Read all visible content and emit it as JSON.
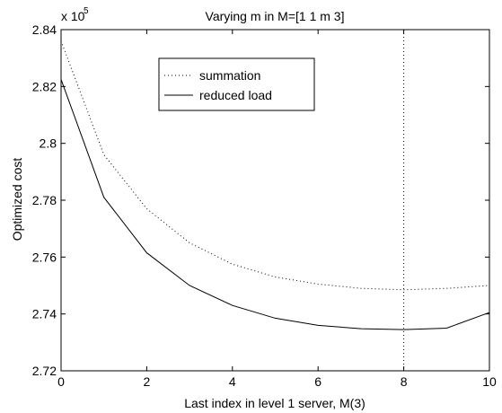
{
  "chart_data": {
    "type": "line",
    "title": "Varying m in M=[1 1 m 3]",
    "xlabel": "Last index in level 1 server, M(3)",
    "ylabel": "Optimized cost",
    "y_multiplier": "x 10",
    "y_multiplier_exponent": "5",
    "xlim": [
      0,
      10
    ],
    "ylim": [
      2.72,
      2.84
    ],
    "x_ticks": [
      "0",
      "2",
      "4",
      "6",
      "8",
      "10"
    ],
    "y_ticks": [
      "2.72",
      "2.74",
      "2.76",
      "2.78",
      "2.8",
      "2.82",
      "2.84"
    ],
    "grid": false,
    "legend_position": "top-center",
    "x": [
      0,
      1,
      2,
      3,
      4,
      5,
      6,
      7,
      8,
      9,
      10
    ],
    "series": [
      {
        "name": "summation",
        "line_style": "dotted",
        "values": [
          2.836,
          2.796,
          2.777,
          2.765,
          2.7575,
          2.753,
          2.7505,
          2.749,
          2.7485,
          2.749,
          2.75
        ]
      },
      {
        "name": "reduced load",
        "line_style": "solid",
        "values": [
          2.8225,
          2.781,
          2.7615,
          2.75,
          2.743,
          2.7385,
          2.736,
          2.7348,
          2.7345,
          2.735,
          2.7405
        ]
      }
    ],
    "annotations": [
      {
        "type": "vertical-line",
        "x": 8,
        "line_style": "dotted"
      }
    ]
  }
}
